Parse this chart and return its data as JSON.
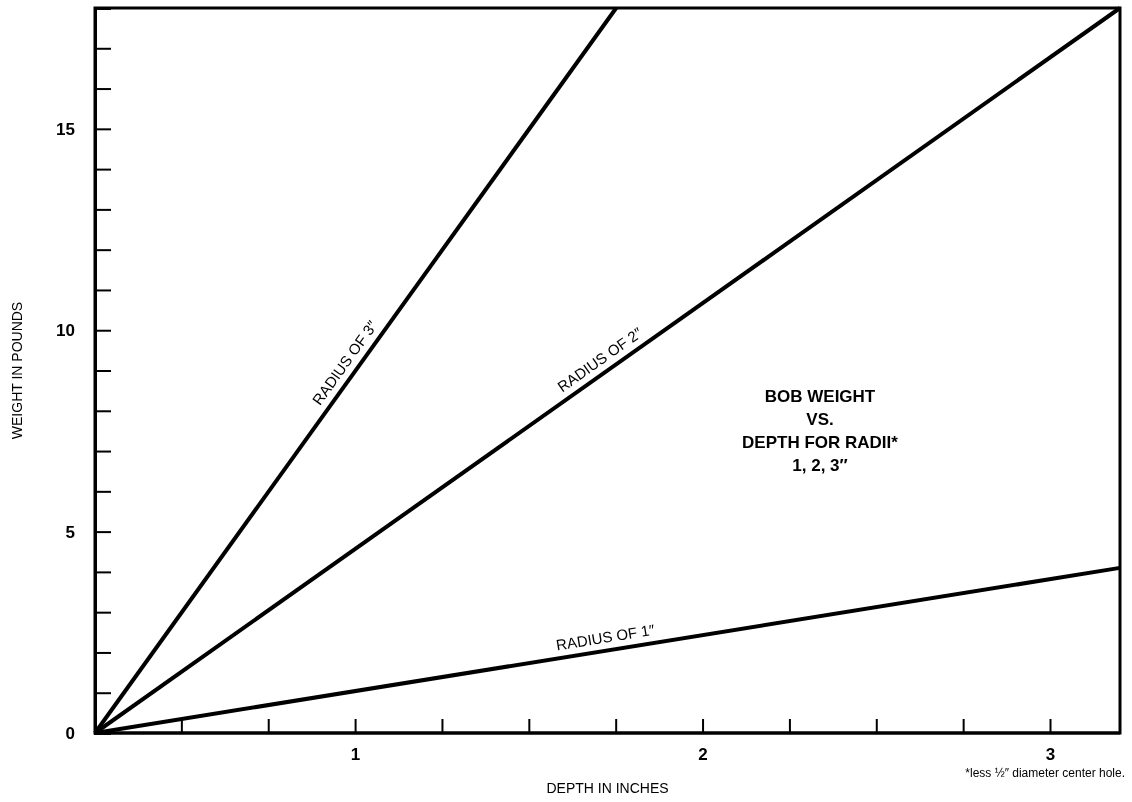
{
  "chart_data": {
    "type": "line",
    "title": "BOB WEIGHT\nVS.\nDEPTH FOR RADII*\n1, 2, 3″",
    "xlabel": "DEPTH IN INCHES",
    "ylabel": "WEIGHT IN POUNDS",
    "series": [
      {
        "name": "RADIUS OF 3″",
        "color": "#000000",
        "x": [
          0.25,
          1.75
        ],
        "values": [
          0,
          18
        ]
      },
      {
        "name": "RADIUS OF 2″",
        "color": "#000000",
        "x": [
          0.25,
          3.2
        ],
        "values": [
          0,
          18
        ]
      },
      {
        "name": "RADIUS OF 1″",
        "color": "#000000",
        "x": [
          0.25,
          3.2
        ],
        "values": [
          0,
          4.1
        ]
      }
    ],
    "xlim": [
      0.25,
      3.2
    ],
    "xticks": [
      {
        "value": 0.5,
        "label": null
      },
      {
        "value": 0.75,
        "label": null
      },
      1,
      {
        "value": 1.25,
        "label": null
      },
      {
        "value": 1.5,
        "label": null
      },
      {
        "value": 1.75,
        "label": null
      },
      2,
      {
        "value": 2.25,
        "label": null
      },
      {
        "value": 2.5,
        "label": null
      },
      {
        "value": 2.75,
        "label": null
      },
      3
    ],
    "ylim": [
      0,
      18
    ],
    "yticks": [
      0,
      {
        "value": 1,
        "label": null
      },
      {
        "value": 2,
        "label": null
      },
      {
        "value": 3,
        "label": null
      },
      {
        "value": 4,
        "label": null
      },
      5,
      {
        "value": 6,
        "label": null
      },
      {
        "value": 7,
        "label": null
      },
      {
        "value": 8,
        "label": null
      },
      {
        "value": 9,
        "label": null
      },
      10,
      {
        "value": 11,
        "label": null
      },
      {
        "value": 12,
        "label": null
      },
      {
        "value": 13,
        "label": null
      },
      {
        "value": 14,
        "label": null
      },
      15,
      {
        "value": 16,
        "label": null
      },
      {
        "value": 17,
        "label": null
      }
    ],
    "annotations": [
      "*less ½″ diameter center hole."
    ],
    "grid": false,
    "legend": false,
    "marker": "none",
    "line_style": "solid"
  }
}
